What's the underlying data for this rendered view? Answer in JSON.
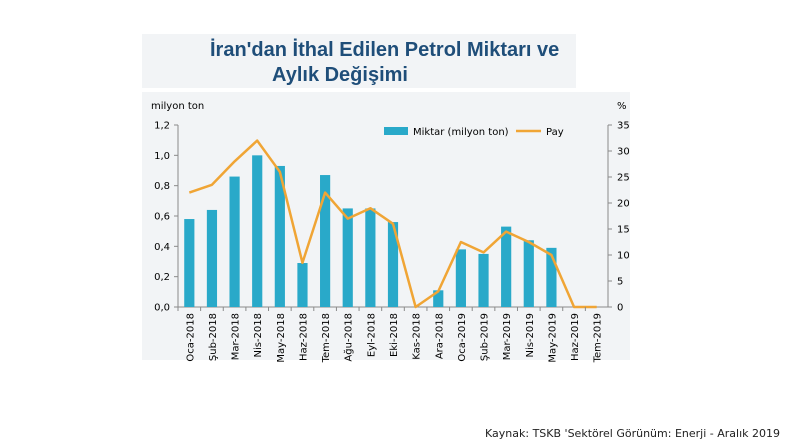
{
  "title_line1": "İran'dan İthal Edilen Petrol Miktarı ve",
  "title_line2": "Aylık Değişimi",
  "source": "Kaynak: TSKB 'Sektörel Görünüm: Enerji - Aralık 2019",
  "colors": {
    "bar": "#29a9c9",
    "line": "#f0a535",
    "title": "#1f4e79",
    "panel": "#f2f4f6"
  },
  "chart_data": {
    "type": "bar+line",
    "categories": [
      "Oca-2018",
      "Şub-2018",
      "Mar-2018",
      "Nis-2018",
      "May-2018",
      "Haz-2018",
      "Tem-2018",
      "Ağu-2018",
      "Eyl-2018",
      "Eki-2018",
      "Kas-2018",
      "Ara-2018",
      "Oca-2019",
      "Şub-2019",
      "Mar-2019",
      "Nis-2019",
      "May-2019",
      "Haz-2019",
      "Tem-2019"
    ],
    "left_axis": {
      "label": "milyon ton",
      "min": 0,
      "max": 1.2,
      "ticks": [
        "0,0",
        "0,2",
        "0,4",
        "0,6",
        "0,8",
        "1,0",
        "1,2"
      ],
      "tick_values": [
        0,
        0.2,
        0.4,
        0.6,
        0.8,
        1.0,
        1.2
      ]
    },
    "right_axis": {
      "label": "%",
      "min": 0,
      "max": 35,
      "ticks": [
        "0",
        "5",
        "10",
        "15",
        "20",
        "25",
        "30",
        "35"
      ],
      "tick_values": [
        0,
        5,
        10,
        15,
        20,
        25,
        30,
        35
      ]
    },
    "series": [
      {
        "name": "Miktar (milyon ton)",
        "kind": "bar",
        "axis": "left",
        "values": [
          0.58,
          0.64,
          0.86,
          1.0,
          0.93,
          0.29,
          0.87,
          0.65,
          0.65,
          0.56,
          0.0,
          0.11,
          0.38,
          0.35,
          0.53,
          0.44,
          0.39,
          0.0,
          0.0
        ]
      },
      {
        "name": "Pay",
        "kind": "line",
        "axis": "right",
        "values": [
          22,
          23.5,
          28,
          32,
          26,
          8.5,
          22,
          17,
          19,
          16,
          0,
          3,
          12.5,
          10.5,
          14.5,
          12.5,
          10,
          0,
          0
        ]
      }
    ],
    "legend_position": "top-right",
    "grid": false
  }
}
